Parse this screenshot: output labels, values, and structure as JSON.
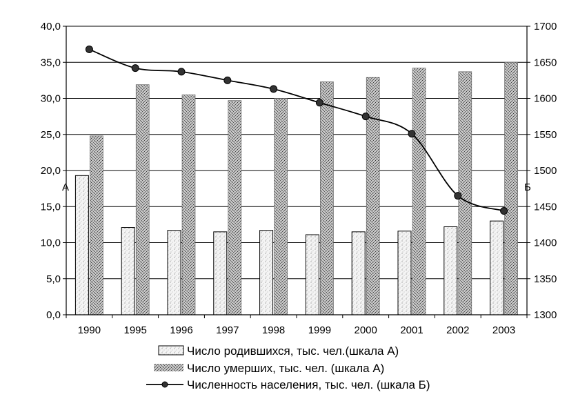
{
  "chart_data": {
    "type": "bar",
    "categories": [
      "1990",
      "1995",
      "1996",
      "1997",
      "1998",
      "1999",
      "2000",
      "2001",
      "2002",
      "2003"
    ],
    "series": [
      {
        "name": "Число родившихся, тыс. чел.(шкала А)",
        "type": "bar",
        "axis": "left",
        "values": [
          19.3,
          12.1,
          11.7,
          11.5,
          11.7,
          11.1,
          11.5,
          11.6,
          12.2,
          13.0
        ]
      },
      {
        "name": "Число умерших, тыс. чел. (шкала А)",
        "type": "bar",
        "axis": "left",
        "values": [
          24.8,
          31.9,
          30.5,
          29.7,
          30.0,
          32.3,
          32.9,
          34.2,
          33.7,
          35.0
        ]
      },
      {
        "name": "Численность населения, тыс. чел. (шкала Б)",
        "type": "line",
        "axis": "right",
        "values": [
          1668,
          1642,
          1637,
          1625,
          1613,
          1594,
          1575,
          1551,
          1465,
          1444
        ]
      }
    ],
    "y_left": {
      "label": "А",
      "lim": [
        0,
        40
      ],
      "ticks": [
        "0,0",
        "5,0",
        "10,0",
        "15,0",
        "20,0",
        "25,0",
        "30,0",
        "35,0",
        "40,0"
      ]
    },
    "y_right": {
      "label": "Б",
      "lim": [
        1300,
        1700
      ],
      "ticks": [
        "1300",
        "1350",
        "1400",
        "1450",
        "1500",
        "1550",
        "1600",
        "1650",
        "1700"
      ]
    },
    "grid": true,
    "legend_position": "bottom",
    "colors": {
      "births": "#ececec",
      "deaths": "#9c9c9c",
      "line": "#000000",
      "marker": "#333333"
    }
  }
}
